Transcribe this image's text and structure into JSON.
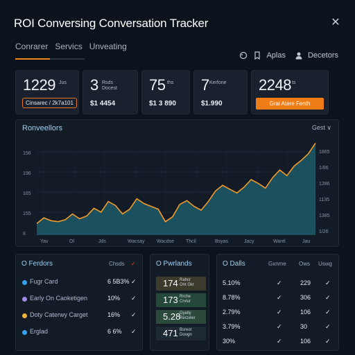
{
  "app": {
    "title": "ROI Conversing Conversation Tracker",
    "close_label": "✕"
  },
  "tabs": [
    "Conrarer",
    "Servics",
    "Unveating"
  ],
  "user": {
    "item1": "Aplas",
    "item2": "Decetors"
  },
  "kpis": [
    {
      "value": "1229",
      "unit": "Jus",
      "chip": "Cinsarec  / 2k7a101"
    },
    {
      "value": "3",
      "unit": "Rsds\nDocest",
      "sub": "$1 4454"
    },
    {
      "value": "75",
      "unit": "ths",
      "sub": "$1 3 890"
    },
    {
      "value": "7",
      "unit": "Kerfone",
      "sub": "$1.990"
    },
    {
      "value": "2248",
      "unit": "ts",
      "cta": "Grai Atere Fenth"
    }
  ],
  "chart": {
    "title": "Ronveellors",
    "select": "Gest ∨",
    "y_left": [
      "156",
      "196",
      "165",
      "155",
      "8"
    ],
    "y_right": [
      "1865",
      "1/86",
      "1286",
      "1135",
      "1385",
      "1/26"
    ],
    "x_labels": [
      "Yav",
      "Ol",
      "Jds",
      "Wacsay",
      "Wacdse",
      "Thcil",
      "Bsyas",
      "Jacy",
      "Wantl",
      "Jau"
    ]
  },
  "chart_data": {
    "type": "area",
    "title": "Ronveellors",
    "x": [
      0,
      1,
      2,
      3,
      4,
      5,
      6,
      7,
      8,
      9,
      10,
      11,
      12,
      13,
      14,
      15,
      16,
      17,
      18,
      19,
      20,
      21,
      22,
      23,
      24,
      25,
      26,
      27,
      28,
      29,
      30,
      31,
      32,
      33,
      34,
      35,
      36,
      37,
      38,
      39
    ],
    "series": [
      {
        "values": [
          12,
          18,
          15,
          14,
          16,
          22,
          17,
          20,
          28,
          24,
          35,
          31,
          22,
          27,
          38,
          33,
          30,
          27,
          14,
          19,
          32,
          36,
          30,
          26,
          35,
          46,
          52,
          48,
          44,
          50,
          58,
          54,
          49,
          60,
          68,
          62,
          72,
          78,
          85,
          96
        ]
      }
    ],
    "line_color": "#f29b2b",
    "fill_color": "#1d5968"
  },
  "panels": {
    "left": {
      "title": "O Ferdors",
      "headers": [
        "Chsds"
      ],
      "rows": [
        {
          "name": "Fugr Card",
          "value": "6 5B3%",
          "color": "#3aa0f0",
          "mark": "check"
        },
        {
          "name": "Early On Caoketigen",
          "value": "10%",
          "color": "#a48be8",
          "mark": "check"
        },
        {
          "name": "Doty Caterwy Carget",
          "value": "16%",
          "color": "#f0b43a",
          "mark": "check"
        },
        {
          "name": "Erglad",
          "value": "6 6%",
          "color": "#3aa0f0",
          "mark": "check"
        }
      ]
    },
    "mid": {
      "title": "O Pwrlands",
      "cells": [
        {
          "value": "174",
          "sub": "Rahcr\nOnt Gkr"
        },
        {
          "value": "173",
          "sub": "Rrche\nCrvlur"
        },
        {
          "value": "5.28",
          "sub": "Gyelly\nRerzeler"
        },
        {
          "value": "471",
          "sub": "Bsreor\nDoogn"
        }
      ]
    },
    "right": {
      "title": "O Dalls",
      "headers": [
        "Gxnme",
        "Ows",
        "Uswg"
      ],
      "rows": [
        {
          "pct": "5.10%",
          "a": "229",
          "b": "check-red"
        },
        {
          "pct": "8.78%",
          "a": "306",
          "b": "check"
        },
        {
          "pct": "2.79%",
          "a": "106",
          "b": "check"
        },
        {
          "pct": "3.79%",
          "a": "30",
          "b": "check"
        },
        {
          "pct": "30%",
          "a": "106",
          "b": "check"
        }
      ]
    }
  }
}
